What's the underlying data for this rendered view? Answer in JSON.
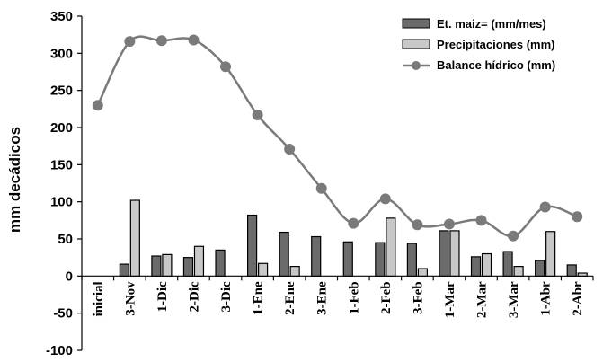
{
  "chart_data": {
    "type": "bar",
    "ylabel": "mm decádicos",
    "ylim": [
      -100,
      350
    ],
    "yticks": [
      -100,
      -50,
      0,
      50,
      100,
      150,
      200,
      250,
      300,
      350
    ],
    "categories": [
      "inicial",
      "3-Nov",
      "1-Dic",
      "2-Dic",
      "3-Dic",
      "1-Ene",
      "2-Ene",
      "3-Ene",
      "1-Feb",
      "2-Feb",
      "3-Feb",
      "1-Mar",
      "2-Mar",
      "3-Mar",
      "1-Abr",
      "2-Abr"
    ],
    "legend_position": "top-right",
    "series": [
      {
        "name": "Et. maiz= (mm/mes)",
        "kind": "bar",
        "color": "#6b6b6b",
        "values": [
          null,
          16,
          27,
          25,
          35,
          82,
          59,
          53,
          46,
          45,
          44,
          61,
          26,
          33,
          21,
          15
        ]
      },
      {
        "name": "Precipitaciones (mm)",
        "kind": "bar",
        "color": "#c8c8c8",
        "values": [
          null,
          102,
          29,
          40,
          null,
          17,
          13,
          null,
          null,
          78,
          10,
          61,
          30,
          13,
          60,
          4
        ]
      },
      {
        "name": "Balance hídrico (mm)",
        "kind": "line",
        "color": "#7a7a7a",
        "values": [
          230,
          316,
          317,
          318,
          282,
          217,
          171,
          118,
          71,
          104,
          69,
          70,
          75,
          54,
          93,
          80
        ]
      }
    ]
  }
}
